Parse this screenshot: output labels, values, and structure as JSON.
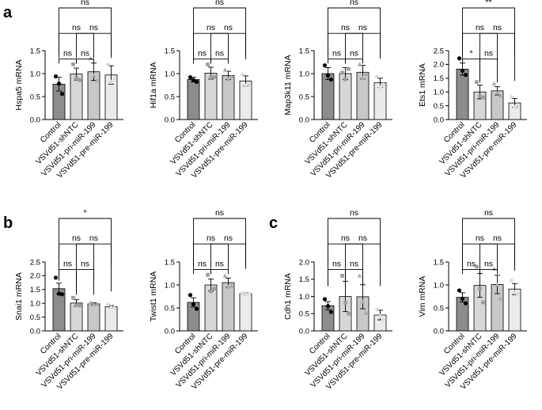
{
  "panel_labels": [
    "a",
    "b",
    "c"
  ],
  "groups": [
    "Control",
    "VSVd51-shNTC",
    "VSVd51-pri-miR-199",
    "VSVd51-pre-miR-199"
  ],
  "colors": {
    "bars": [
      "#8c8c8c",
      "#d7d7d7",
      "#c8c8c8",
      "#ebebeb"
    ],
    "dots": [
      "#000000",
      "#9e9e9e",
      "#a8a8a8",
      "#dcdcdc"
    ]
  },
  "chart_data": [
    {
      "type": "bar",
      "panel": "a",
      "ylabel": "Hspa5 mRNA",
      "ylim": [
        0,
        1.5
      ],
      "yticks": [
        0.0,
        0.5,
        1.0,
        1.5
      ],
      "ytick_labels": [
        "0.0",
        "0.5",
        "1.0",
        "1.5"
      ],
      "categories": [
        "Control",
        "VSVd51-shNTC",
        "VSVd51-pri-miR-199",
        "VSVd51-pre-miR-199"
      ],
      "values": [
        0.77,
        0.99,
        1.04,
        0.97
      ],
      "errors": [
        0.15,
        0.13,
        0.19,
        0.2
      ],
      "points": [
        [
          0.94,
          0.78,
          0.56
        ],
        [
          1.2,
          0.9,
          0.86
        ],
        [
          1.33,
          0.96,
          0.85
        ],
        [
          1.2,
          0.82,
          0.88
        ]
      ],
      "comparisons": [
        {
          "from": 0,
          "to": 1,
          "label": "ns"
        },
        {
          "from": 0,
          "to": 2,
          "label": "ns"
        },
        {
          "from": 0,
          "to": 3,
          "label": "ns"
        },
        {
          "from": 1,
          "to": 2,
          "label": "ns"
        },
        {
          "from": 1,
          "to": 3,
          "label": "ns"
        }
      ]
    },
    {
      "type": "bar",
      "panel": "",
      "ylabel": "Hif1a mRNA",
      "ylim": [
        0,
        1.5
      ],
      "yticks": [
        0.0,
        0.5,
        1.0,
        1.5
      ],
      "ytick_labels": [
        "0.0",
        "0.5",
        "1.0",
        "1.5"
      ],
      "categories": [
        "Control",
        "VSVd51-shNTC",
        "VSVd51-pri-miR-199",
        "VSVd51-pre-miR-199"
      ],
      "values": [
        0.87,
        1.01,
        0.96,
        0.84
      ],
      "errors": [
        0.05,
        0.13,
        0.09,
        0.11
      ],
      "points": [
        [
          0.92,
          0.86,
          0.82
        ],
        [
          1.2,
          0.92,
          0.93
        ],
        [
          1.08,
          0.88,
          0.93
        ],
        [
          0.98,
          0.74,
          0.78
        ]
      ],
      "comparisons": [
        {
          "from": 0,
          "to": 1,
          "label": "ns"
        },
        {
          "from": 0,
          "to": 2,
          "label": "ns"
        },
        {
          "from": 0,
          "to": 3,
          "label": "ns"
        },
        {
          "from": 1,
          "to": 2,
          "label": "ns"
        },
        {
          "from": 1,
          "to": 3,
          "label": "ns"
        }
      ]
    },
    {
      "type": "bar",
      "panel": "",
      "ylabel": "Map3k11 mRNA",
      "ylim": [
        0,
        1.5
      ],
      "yticks": [
        0.0,
        0.5,
        1.0,
        1.5
      ],
      "ytick_labels": [
        "0.0",
        "0.5",
        "1.0",
        "1.5"
      ],
      "categories": [
        "Control",
        "VSVd51-shNTC",
        "VSVd51-pri-miR-199",
        "VSVd51-pre-miR-199"
      ],
      "values": [
        1.0,
        1.0,
        1.03,
        0.8
      ],
      "errors": [
        0.13,
        0.13,
        0.15,
        0.1
      ],
      "points": [
        [
          1.18,
          0.96,
          0.87
        ],
        [
          1.02,
          0.88,
          1.1
        ],
        [
          1.2,
          0.91,
          0.99
        ],
        [
          0.94,
          0.7,
          0.76
        ]
      ],
      "comparisons": [
        {
          "from": 0,
          "to": 1,
          "label": "ns"
        },
        {
          "from": 0,
          "to": 2,
          "label": "ns"
        },
        {
          "from": 0,
          "to": 3,
          "label": "ns"
        },
        {
          "from": 1,
          "to": 2,
          "label": "ns"
        },
        {
          "from": 1,
          "to": 3,
          "label": "ns"
        }
      ]
    },
    {
      "type": "bar",
      "panel": "",
      "ylabel": "Ets1 mRNA",
      "ylim": [
        0,
        2.5
      ],
      "yticks": [
        0.0,
        0.5,
        1.0,
        1.5,
        2.0,
        2.5
      ],
      "ytick_labels": [
        "0.0",
        "0.5",
        "1.0",
        "1.5",
        "2.0",
        "2.5"
      ],
      "categories": [
        "Control",
        "VSVd51-shNTC",
        "VSVd51-pri-miR-199",
        "VSVd51-pre-miR-199"
      ],
      "values": [
        1.83,
        1.0,
        1.04,
        0.6
      ],
      "errors": [
        0.22,
        0.25,
        0.15,
        0.16
      ],
      "points": [
        [
          2.22,
          1.77,
          1.62
        ],
        [
          1.36,
          0.84,
          0.8
        ],
        [
          1.3,
          0.96,
          0.87
        ],
        [
          0.82,
          0.45,
          0.52
        ]
      ],
      "comparisons": [
        {
          "from": 0,
          "to": 1,
          "label": "*"
        },
        {
          "from": 0,
          "to": 2,
          "label": "ns"
        },
        {
          "from": 0,
          "to": 3,
          "label": "**"
        },
        {
          "from": 1,
          "to": 2,
          "label": "ns"
        },
        {
          "from": 1,
          "to": 3,
          "label": "ns"
        }
      ]
    },
    {
      "type": "bar",
      "panel": "b",
      "ylabel": "Snai1 mRNA",
      "ylim": [
        0,
        2.5
      ],
      "yticks": [
        0.0,
        0.5,
        1.0,
        1.5,
        2.0,
        2.5
      ],
      "ytick_labels": [
        "0.0",
        "0.5",
        "1.0",
        "1.5",
        "2.0",
        "2.5"
      ],
      "categories": [
        "Control",
        "VSVd51-shNTC",
        "VSVd51-pri-miR-199",
        "VSVd51-pre-miR-199"
      ],
      "values": [
        1.53,
        1.01,
        0.98,
        0.88
      ],
      "errors": [
        0.2,
        0.12,
        0.04,
        0.04
      ],
      "points": [
        [
          1.93,
          1.35,
          1.33
        ],
        [
          1.2,
          0.93,
          0.92
        ],
        [
          1.02,
          0.96,
          0.96
        ],
        [
          0.96,
          0.85,
          0.83
        ]
      ],
      "comparisons": [
        {
          "from": 0,
          "to": 1,
          "label": "ns"
        },
        {
          "from": 0,
          "to": 2,
          "label": "ns"
        },
        {
          "from": 0,
          "to": 3,
          "label": "*"
        },
        {
          "from": 1,
          "to": 2,
          "label": "ns"
        },
        {
          "from": 1,
          "to": 3,
          "label": "ns"
        }
      ]
    },
    {
      "type": "bar",
      "panel": "",
      "ylabel": "Twist1 mRNA",
      "ylim": [
        0,
        1.5
      ],
      "yticks": [
        0.0,
        0.5,
        1.0,
        1.5
      ],
      "ytick_labels": [
        "0.0",
        "0.5",
        "1.0",
        "1.5"
      ],
      "categories": [
        "Control",
        "VSVd51-shNTC",
        "VSVd51-pri-miR-199",
        "VSVd51-pre-miR-199"
      ],
      "values": [
        0.62,
        1.0,
        1.05,
        0.81
      ],
      "errors": [
        0.1,
        0.13,
        0.1,
        0.02
      ],
      "points": [
        [
          0.78,
          0.58,
          0.48
        ],
        [
          1.22,
          0.86,
          0.92
        ],
        [
          1.2,
          0.96,
          0.98
        ],
        [
          0.82,
          0.8,
          0.81
        ]
      ],
      "comparisons": [
        {
          "from": 0,
          "to": 1,
          "label": "ns"
        },
        {
          "from": 0,
          "to": 2,
          "label": "ns"
        },
        {
          "from": 0,
          "to": 3,
          "label": "ns"
        },
        {
          "from": 1,
          "to": 2,
          "label": "ns"
        },
        {
          "from": 1,
          "to": 3,
          "label": "ns"
        }
      ]
    },
    {
      "type": "bar",
      "panel": "c",
      "ylabel": "Cdh1 mRNA",
      "ylim": [
        0,
        2.0
      ],
      "yticks": [
        0.0,
        0.5,
        1.0,
        1.5,
        2.0
      ],
      "ytick_labels": [
        "0.0",
        "0.5",
        "1.0",
        "1.5",
        "2.0"
      ],
      "categories": [
        "Control",
        "VSVd51-shNTC",
        "VSVd51-pri-miR-199",
        "VSVd51-pre-miR-199"
      ],
      "values": [
        0.73,
        1.0,
        0.99,
        0.46
      ],
      "errors": [
        0.12,
        0.44,
        0.35,
        0.14
      ],
      "points": [
        [
          0.92,
          0.72,
          0.55
        ],
        [
          1.6,
          0.82,
          0.5
        ],
        [
          1.6,
          0.84,
          0.52
        ],
        [
          0.63,
          0.42,
          0.32
        ]
      ],
      "comparisons": [
        {
          "from": 0,
          "to": 1,
          "label": "ns"
        },
        {
          "from": 0,
          "to": 2,
          "label": "ns"
        },
        {
          "from": 0,
          "to": 3,
          "label": "ns"
        },
        {
          "from": 1,
          "to": 2,
          "label": "ns"
        },
        {
          "from": 1,
          "to": 3,
          "label": "ns"
        }
      ]
    },
    {
      "type": "bar",
      "panel": "",
      "ylabel": "Vim mRNA",
      "ylim": [
        0,
        1.5
      ],
      "yticks": [
        0.0,
        0.5,
        1.0,
        1.5
      ],
      "ytick_labels": [
        "0.0",
        "0.5",
        "1.0",
        "1.5"
      ],
      "categories": [
        "Control",
        "VSVd51-shNTC",
        "VSVd51-pri-miR-199",
        "VSVd51-pre-miR-199"
      ],
      "values": [
        0.73,
        0.99,
        1.01,
        0.91
      ],
      "errors": [
        0.1,
        0.26,
        0.2,
        0.12
      ],
      "points": [
        [
          0.88,
          0.7,
          0.6
        ],
        [
          1.4,
          0.92,
          0.62
        ],
        [
          1.35,
          1.0,
          0.7
        ],
        [
          1.1,
          0.84,
          0.8
        ]
      ],
      "comparisons": [
        {
          "from": 0,
          "to": 1,
          "label": "ns"
        },
        {
          "from": 0,
          "to": 2,
          "label": "ns"
        },
        {
          "from": 0,
          "to": 3,
          "label": "ns"
        },
        {
          "from": 1,
          "to": 2,
          "label": "ns"
        },
        {
          "from": 1,
          "to": 3,
          "label": "ns"
        }
      ]
    }
  ]
}
